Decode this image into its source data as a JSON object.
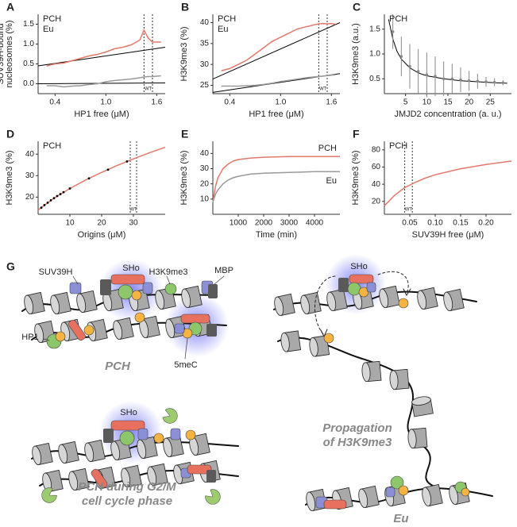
{
  "chart_data": [
    {
      "panel": "A",
      "type": "line",
      "x_label": "HP1 free (μM)",
      "y_label": [
        "SUV39H-bound",
        "nucleosomes (%)"
      ],
      "xlim": [
        0.2,
        1.7
      ],
      "xticks": [
        0.4,
        {
          "value": 1,
          "label": "1.0"
        },
        1.6
      ],
      "ylim": [
        -0.25,
        1.75
      ],
      "yticks": [
        {
          "value": 0,
          "label": "0.0"
        },
        0.5,
        {
          "value": 1,
          "label": "1.0"
        },
        1.5
      ],
      "x": [
        0.3,
        0.4,
        0.5,
        0.6,
        0.7,
        0.8,
        0.9,
        1.0,
        1.1,
        1.2,
        1.3,
        1.4,
        1.45,
        1.5,
        1.55,
        1.6,
        1.65
      ],
      "series": [
        {
          "name": "PCH",
          "color": "#e2796a",
          "values": [
            0.45,
            0.5,
            0.52,
            0.58,
            0.64,
            0.7,
            0.74,
            0.8,
            0.88,
            0.92,
            0.98,
            1.1,
            1.35,
            1.15,
            1.05,
            1.05,
            1.05
          ]
        },
        {
          "name": "Eu",
          "color": "#999999",
          "values": [
            -0.05,
            -0.05,
            -0.08,
            -0.06,
            -0.05,
            -0.02,
            0.0,
            0.05,
            0.08,
            0.1,
            0.12,
            0.15,
            0.17,
            0.18,
            0.18,
            0.19,
            0.2
          ]
        }
      ],
      "fits": [
        {
          "color": "#000000",
          "x": [
            0.2,
            1.7
          ],
          "values": [
            0.45,
            0.92
          ]
        },
        {
          "color": "#000000",
          "x": [
            0.2,
            1.7
          ],
          "values": [
            0.0,
            0.02
          ]
        }
      ],
      "wt_lines": [
        1.45,
        1.55
      ],
      "wt_label": "WT",
      "legend": "upper left"
    },
    {
      "panel": "B",
      "type": "line",
      "x_label": "HP1 free (μM)",
      "y_label": "H3K9me3  (%)",
      "xlim": [
        0.2,
        1.7
      ],
      "xticks": [
        0.4,
        {
          "value": 1,
          "label": "1.0"
        },
        1.6
      ],
      "ylim": [
        23,
        42
      ],
      "yticks": [
        25,
        30,
        35,
        40
      ],
      "x": [
        0.3,
        0.4,
        0.5,
        0.6,
        0.7,
        0.8,
        0.9,
        1.0,
        1.1,
        1.2,
        1.3,
        1.4,
        1.45,
        1.5,
        1.55,
        1.6,
        1.65
      ],
      "series": [
        {
          "name": "PCH",
          "color": "#e2796a",
          "values": [
            28.5,
            29,
            30,
            31,
            32.5,
            34,
            35.5,
            36.5,
            37.5,
            38.5,
            39,
            39.5,
            39.7,
            39.8,
            39.7,
            39.8,
            39.6
          ]
        },
        {
          "name": "Eu",
          "color": "#999999",
          "values": [
            24.8,
            24.8,
            24.8,
            24.9,
            25,
            25.2,
            25.5,
            25.9,
            26.2,
            26.5,
            26.8,
            27,
            27.1,
            27.2,
            27.3,
            27.4,
            27.5
          ]
        }
      ],
      "fits": [
        {
          "color": "#000000",
          "x": [
            0.2,
            1.7
          ],
          "values": [
            26.5,
            40
          ]
        },
        {
          "color": "#000000",
          "x": [
            0.2,
            1.7
          ],
          "values": [
            23.3,
            27.8
          ]
        }
      ],
      "wt_lines": [
        1.45,
        1.55
      ],
      "wt_label": "WT",
      "legend": "upper left"
    },
    {
      "panel": "C",
      "type": "scatter",
      "x_label": "JMJD2 concentration (a. u.)",
      "y_label": "H3K9me3  (a.u.)",
      "xlim": [
        0,
        30
      ],
      "xticks": [
        5,
        10,
        15,
        20,
        25
      ],
      "ylim": [
        0.2,
        1.8
      ],
      "yticks": [
        0.5,
        {
          "value": 1,
          "label": "1.0"
        },
        1.5
      ],
      "series": [
        {
          "name": "PCH",
          "color": "#e2796a",
          "marker_color": "#888888",
          "x": [
            2,
            4,
            6,
            8,
            10,
            12,
            14,
            16,
            18,
            20,
            22,
            24,
            26,
            28
          ],
          "values": [
            1.45,
            0.95,
            0.75,
            0.65,
            0.58,
            0.55,
            0.5,
            0.5,
            0.48,
            0.46,
            0.45,
            0.44,
            0.43,
            0.42
          ],
          "errors": [
            0.35,
            0.4,
            0.45,
            0.45,
            0.45,
            0.4,
            0.35,
            0.3,
            0.25,
            0.2,
            0.15,
            0.1,
            0.08,
            0.05
          ]
        }
      ],
      "fits": [
        {
          "color": "#000000",
          "x": [
            1,
            2,
            3,
            4,
            6,
            8,
            10,
            14,
            18,
            22,
            26,
            29
          ],
          "values": [
            1.7,
            1.3,
            1.05,
            0.9,
            0.72,
            0.62,
            0.56,
            0.5,
            0.46,
            0.44,
            0.42,
            0.41
          ]
        }
      ],
      "legend": "upper left"
    },
    {
      "panel": "D",
      "type": "line",
      "x_label": "Origins (μM)",
      "y_label": "H3K9me3  (%)",
      "xlim": [
        0,
        40
      ],
      "xticks": [
        10,
        20,
        30
      ],
      "ylim": [
        12,
        46
      ],
      "yticks": [
        20,
        30,
        40
      ],
      "series": [
        {
          "name": "PCH",
          "color": "#e2796a",
          "x": [
            0,
            5,
            10,
            15,
            20,
            25,
            30,
            35,
            40
          ],
          "values": [
            14,
            19.5,
            24,
            28,
            31.5,
            34.8,
            37.8,
            40.6,
            43.2
          ]
        }
      ],
      "points": {
        "color": "#000000",
        "x": [
          1,
          2,
          3,
          4,
          5,
          6,
          7,
          8,
          10,
          16,
          22,
          28
        ],
        "values": [
          15.1,
          16.3,
          17.4,
          18.5,
          19.5,
          20.5,
          21.4,
          22.3,
          24,
          28.7,
          32.8,
          36.6
        ]
      },
      "wt_lines": [
        29,
        31
      ],
      "wt_label": "WT",
      "legend": "upper left"
    },
    {
      "panel": "E",
      "type": "line",
      "x_label": "Time (min)",
      "y_label": "H3K9me3  (%)",
      "xlim": [
        0,
        5000
      ],
      "xticks": [
        1000,
        2000,
        3000,
        4000
      ],
      "ylim": [
        0,
        48
      ],
      "yticks": [
        10,
        20,
        30,
        40
      ],
      "x": [
        0,
        100,
        200,
        400,
        600,
        800,
        1000,
        1500,
        2000,
        3000,
        4000,
        5000
      ],
      "series": [
        {
          "name": "PCH",
          "color": "#e2796a",
          "values": [
            8,
            18,
            24,
            30,
            33,
            35,
            36,
            37,
            37.5,
            38,
            38,
            38
          ]
        },
        {
          "name": "Eu",
          "color": "#999999",
          "values": [
            8,
            13,
            16,
            20,
            22.5,
            24,
            25,
            26.5,
            27,
            27.5,
            28,
            28
          ]
        }
      ],
      "legend": "inline"
    },
    {
      "panel": "F",
      "type": "line",
      "x_label": "SUV39H free (μM)",
      "y_label": "H3K9me3 (%)",
      "xlim": [
        0,
        0.25
      ],
      "xticks": [
        0.05,
        {
          "value": 0.1,
          "label": "0.10"
        },
        0.15,
        {
          "value": 0.2,
          "label": "0.20"
        }
      ],
      "ylim": [
        5,
        90
      ],
      "yticks": [
        20,
        40,
        60,
        80
      ],
      "series": [
        {
          "name": "PCH",
          "color": "#e2796a",
          "x": [
            0,
            0.02,
            0.04,
            0.06,
            0.08,
            0.1,
            0.15,
            0.2,
            0.25
          ],
          "values": [
            15,
            27,
            36,
            42,
            47,
            51,
            58,
            63,
            67
          ]
        }
      ],
      "wt_lines": [
        0.04,
        0.055
      ],
      "wt_label": "WT",
      "legend": "upper left"
    }
  ],
  "diagram": {
    "panel": "G",
    "pch": {
      "suv39h": "SUV39H",
      "sho": "SHo",
      "h3k9me3": "H3K9me3",
      "mbp": "MBP",
      "hp1": "HP1",
      "5mec": "5meC",
      "title": "PCH"
    },
    "g2m": {
      "sho": "SHo",
      "title": [
        "PCH during G2/M",
        "cell cycle phase"
      ]
    },
    "eu": {
      "sho": "SHo",
      "propagation": [
        "Propagation",
        "of H3K9me3"
      ],
      "title": "Eu"
    }
  }
}
